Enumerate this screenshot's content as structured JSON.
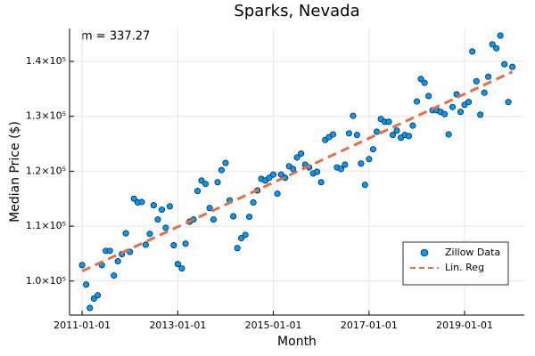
{
  "chart_data": {
    "type": "scatter",
    "title": "Sparks, Nevada",
    "xlabel": "Month",
    "ylabel": "Median Price ($)",
    "annotation": "m = 337.27",
    "x": [
      "2011-01-01",
      "2011-02-01",
      "2011-03-01",
      "2011-04-01",
      "2011-05-01",
      "2011-06-01",
      "2011-07-01",
      "2011-08-01",
      "2011-09-01",
      "2011-10-01",
      "2011-11-01",
      "2011-12-01",
      "2012-01-01",
      "2012-02-01",
      "2012-03-01",
      "2012-04-01",
      "2012-05-01",
      "2012-06-01",
      "2012-07-01",
      "2012-08-01",
      "2012-09-01",
      "2012-10-01",
      "2012-11-01",
      "2012-12-01",
      "2013-01-01",
      "2013-02-01",
      "2013-03-01",
      "2013-04-01",
      "2013-05-01",
      "2013-06-01",
      "2013-07-01",
      "2013-08-01",
      "2013-09-01",
      "2013-10-01",
      "2013-11-01",
      "2013-12-01",
      "2014-01-01",
      "2014-02-01",
      "2014-03-01",
      "2014-04-01",
      "2014-05-01",
      "2014-06-01",
      "2014-07-01",
      "2014-08-01",
      "2014-09-01",
      "2014-10-01",
      "2014-11-01",
      "2014-12-01",
      "2015-01-01",
      "2015-02-01",
      "2015-03-01",
      "2015-04-01",
      "2015-05-01",
      "2015-06-01",
      "2015-07-01",
      "2015-08-01",
      "2015-09-01",
      "2015-10-01",
      "2015-11-01",
      "2015-12-01",
      "2016-01-01",
      "2016-02-01",
      "2016-03-01",
      "2016-04-01",
      "2016-05-01",
      "2016-06-01",
      "2016-07-01",
      "2016-08-01",
      "2016-09-01",
      "2016-10-01",
      "2016-11-01",
      "2016-12-01",
      "2017-01-01",
      "2017-02-01",
      "2017-03-01",
      "2017-04-01",
      "2017-05-01",
      "2017-06-01",
      "2017-07-01",
      "2017-08-01",
      "2017-09-01",
      "2017-10-01",
      "2017-11-01",
      "2017-12-01",
      "2018-01-01",
      "2018-02-01",
      "2018-03-01",
      "2018-04-01",
      "2018-05-01",
      "2018-06-01",
      "2018-07-01",
      "2018-08-01",
      "2018-09-01",
      "2018-10-01",
      "2018-11-01",
      "2018-12-01",
      "2019-01-01",
      "2019-02-01",
      "2019-03-01",
      "2019-04-01",
      "2019-05-01",
      "2019-06-01",
      "2019-07-01",
      "2019-08-01",
      "2019-09-01",
      "2019-10-01",
      "2019-11-01",
      "2019-12-01",
      "2020-01-01"
    ],
    "series": [
      {
        "name": "Zillow Data",
        "type": "scatter",
        "color": "#009af9",
        "values": [
          102900,
          99350,
          95100,
          96800,
          97400,
          102900,
          105500,
          105500,
          101000,
          103600,
          104900,
          108700,
          105300,
          115000,
          114300,
          114400,
          106600,
          108600,
          113800,
          111200,
          113000,
          109700,
          113600,
          106500,
          103100,
          102300,
          106800,
          110800,
          111200,
          116400,
          118300,
          117700,
          113300,
          111200,
          118000,
          120200,
          121500,
          114700,
          111800,
          106000,
          107800,
          108400,
          111700,
          114300,
          116500,
          118600,
          118300,
          118800,
          119400,
          115900,
          119400,
          118800,
          120900,
          120400,
          122500,
          123200,
          121200,
          120700,
          119600,
          119900,
          118000,
          125700,
          126200,
          126700,
          120700,
          120400,
          121200,
          126900,
          130100,
          126600,
          121400,
          117500,
          122200,
          124000,
          127200,
          129500,
          129000,
          129000,
          126600,
          127400,
          126100,
          126600,
          126400,
          128300,
          132700,
          136800,
          136100,
          133700,
          131100,
          131100,
          130800,
          130400,
          126700,
          131700,
          134000,
          130800,
          132100,
          132600,
          141800,
          136400,
          130300,
          134300,
          137200,
          143100,
          142400,
          144700,
          139500,
          132600,
          139000
        ]
      },
      {
        "name": "Lin. Reg",
        "type": "line",
        "color": "#e26f46",
        "x": [
          "2011-01-01",
          "2020-01-01"
        ],
        "values": [
          101800,
          138100
        ]
      }
    ],
    "xlim": [
      "2010-09-27",
      "2020-04-01"
    ],
    "xticks": [
      "2011-01-01",
      "2013-01-01",
      "2015-01-01",
      "2017-01-01",
      "2019-01-01"
    ],
    "ylim": [
      93800,
      146000
    ],
    "yticks": [
      {
        "value": 100000,
        "label": "1.0×10⁵"
      },
      {
        "value": 110000,
        "label": "1.1×10⁵"
      },
      {
        "value": 120000,
        "label": "1.2×10⁵"
      },
      {
        "value": 130000,
        "label": "1.3×10⁵"
      },
      {
        "value": 140000,
        "label": "1.4×10⁵"
      }
    ],
    "grid": true,
    "legend": "bottom-right"
  }
}
